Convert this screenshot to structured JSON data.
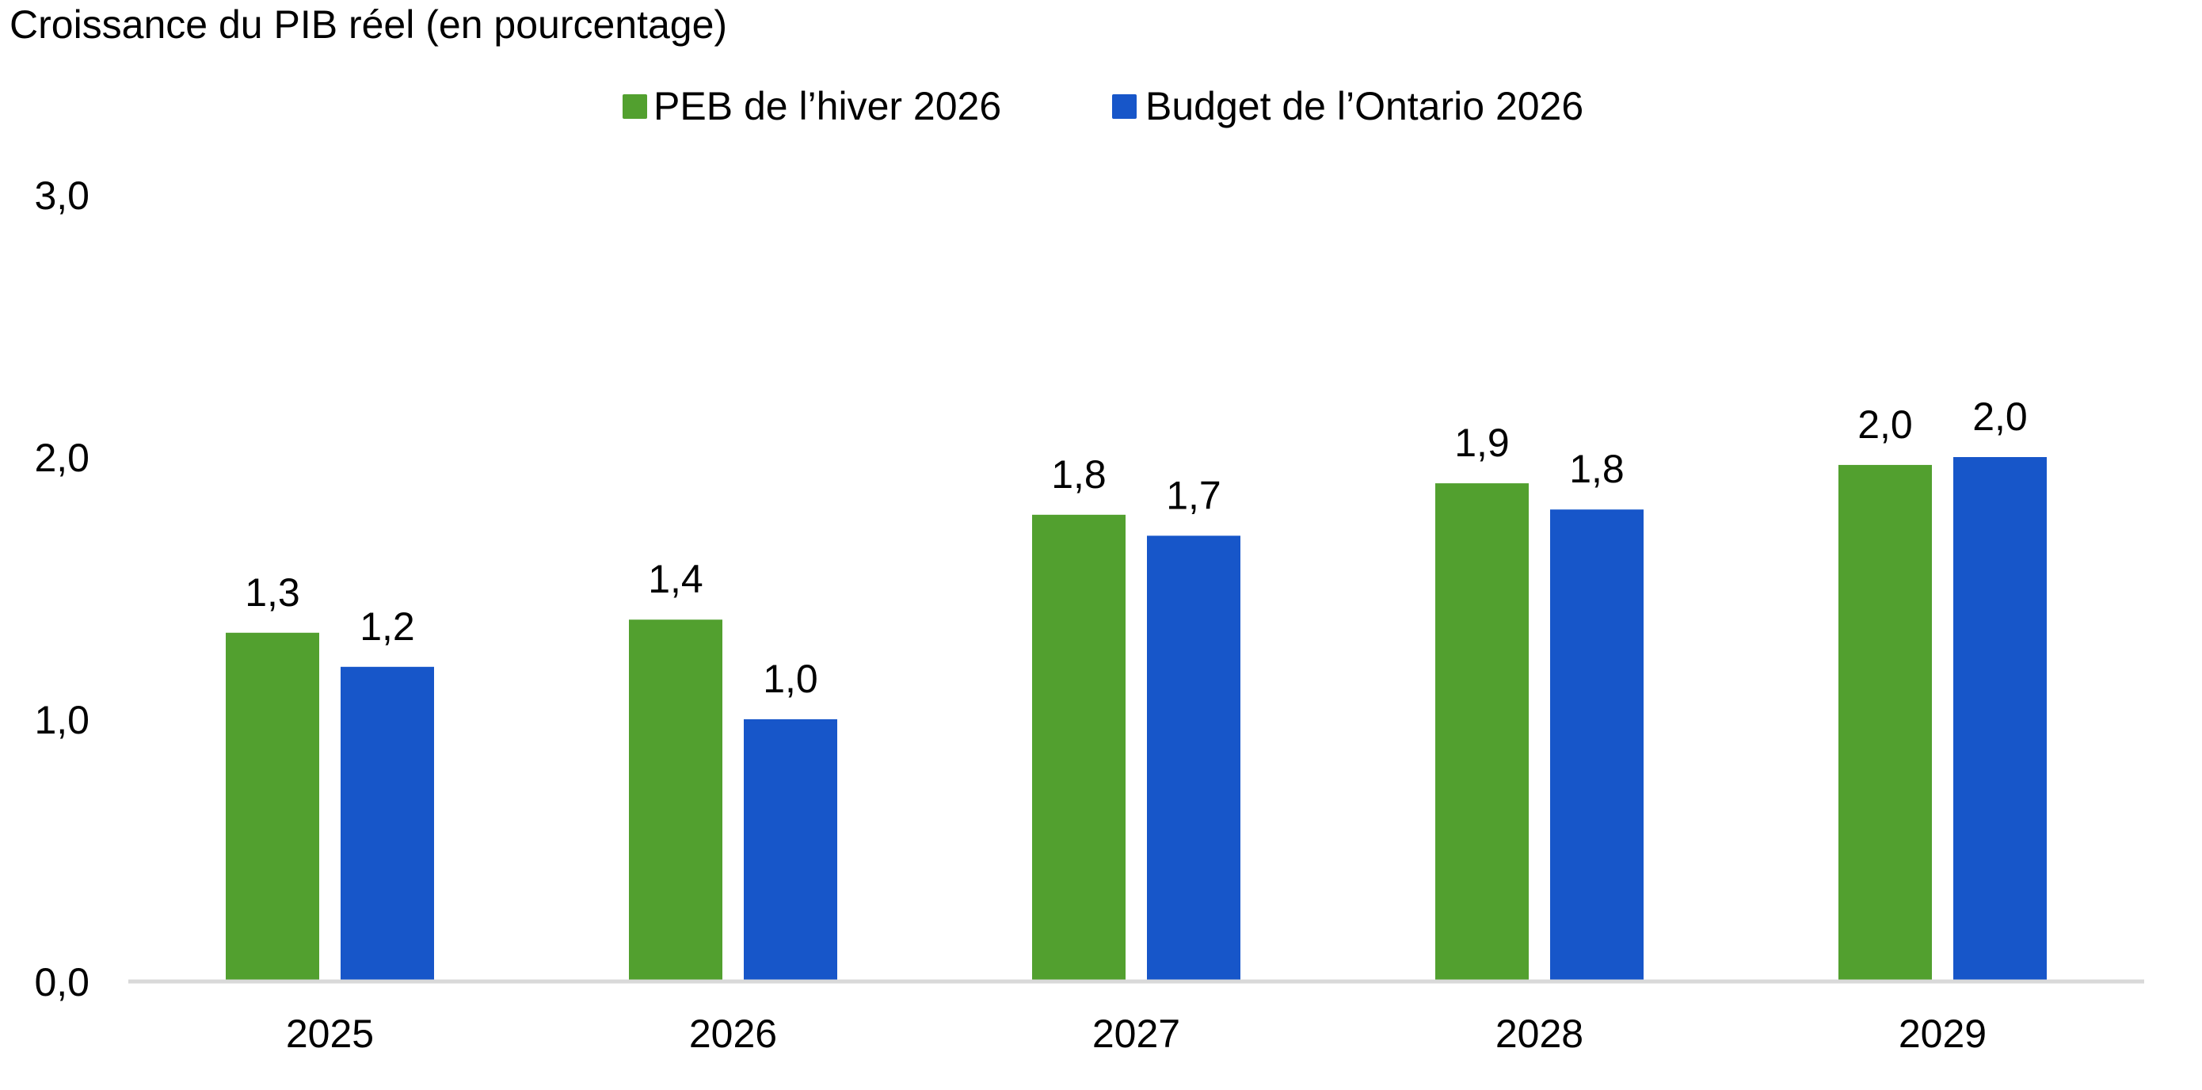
{
  "chart_data": {
    "type": "bar",
    "title": "Croissance du PIB réel (en pourcentage)",
    "xlabel": "",
    "ylabel": "",
    "categories": [
      "2025",
      "2026",
      "2027",
      "2028",
      "2029"
    ],
    "series": [
      {
        "name": "PEB de l’hiver 2026",
        "color": "#52A02F",
        "values": [
          1.33,
          1.38,
          1.78,
          1.9,
          1.97
        ],
        "labels": [
          "1,3",
          "1,4",
          "1,8",
          "1,9",
          "2,0"
        ]
      },
      {
        "name": "Budget de l’Ontario 2026",
        "color": "#1756C9",
        "values": [
          1.2,
          1.0,
          1.7,
          1.8,
          2.0
        ],
        "labels": [
          "1,2",
          "1,0",
          "1,7",
          "1,8",
          "2,0"
        ]
      }
    ],
    "ylim": [
      0,
      3
    ],
    "yticks": [
      0,
      1,
      2,
      3
    ],
    "ytick_labels": [
      "0,0",
      "1,0",
      "2,0",
      "3,0"
    ],
    "grid": false,
    "legend_position": "top-center",
    "axis_color": "#D9D9D9"
  }
}
